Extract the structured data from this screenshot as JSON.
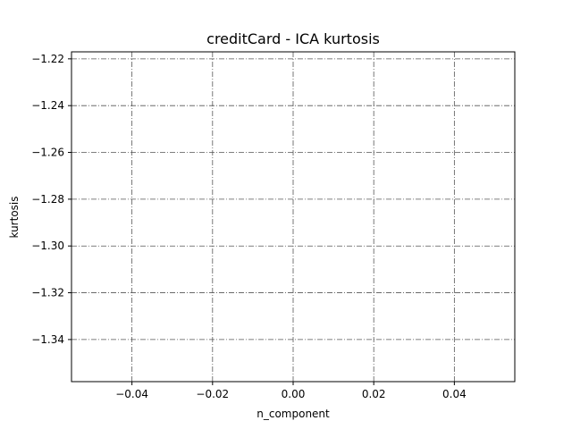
{
  "chart_data": {
    "type": "line",
    "title": "creditCard - ICA kurtosis",
    "xlabel": "n_component",
    "ylabel": "kurtosis",
    "xlim": [
      -0.055,
      0.055
    ],
    "ylim": [
      -1.358,
      -1.217
    ],
    "x_ticks": [
      -0.04,
      -0.02,
      0.0,
      0.02,
      0.04
    ],
    "x_tick_labels": [
      "−0.04",
      "−0.02",
      "0.00",
      "0.02",
      "0.04"
    ],
    "y_ticks": [
      -1.22,
      -1.24,
      -1.26,
      -1.28,
      -1.3,
      -1.32,
      -1.34
    ],
    "y_tick_labels": [
      "−1.22",
      "−1.24",
      "−1.26",
      "−1.28",
      "−1.30",
      "−1.32",
      "−1.34"
    ],
    "grid": true,
    "grid_style": "dashdot",
    "series": []
  }
}
